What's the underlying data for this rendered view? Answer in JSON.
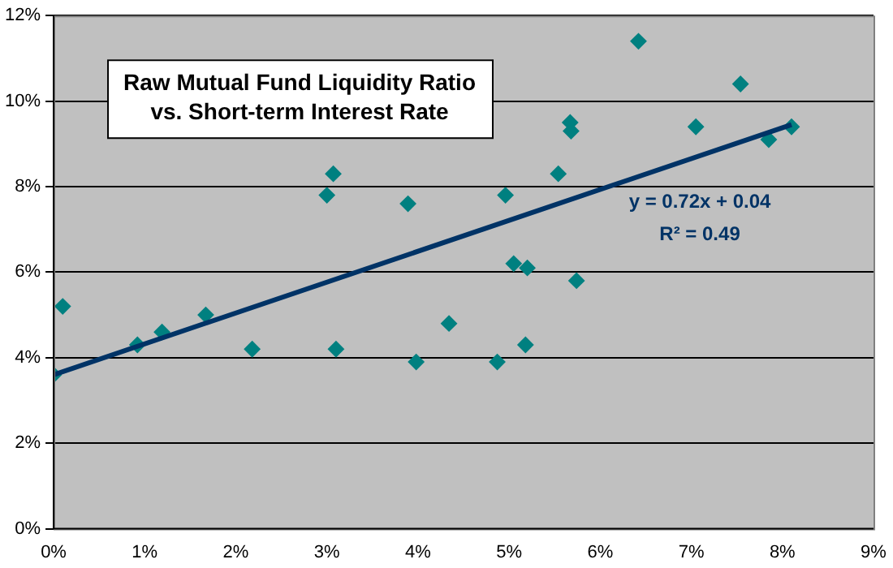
{
  "chart_data": {
    "type": "scatter",
    "title": "Raw Mutual Fund Liquidity Ratio\nvs. Short-term Interest Rate",
    "annotations": [
      "y = 0.72x + 0.04",
      "R² = 0.49"
    ],
    "xlim": [
      0,
      9
    ],
    "xticks": [
      {
        "value": 0,
        "label": "0%"
      },
      {
        "value": 1,
        "label": "1%"
      },
      {
        "value": 2,
        "label": "2%"
      },
      {
        "value": 3,
        "label": "3%"
      },
      {
        "value": 4,
        "label": "4%"
      },
      {
        "value": 5,
        "label": "5%"
      },
      {
        "value": 6,
        "label": "6%"
      },
      {
        "value": 7,
        "label": "7%"
      },
      {
        "value": 8,
        "label": "8%"
      },
      {
        "value": 9,
        "label": "9%"
      }
    ],
    "ylim": [
      0,
      12
    ],
    "yticks": [
      {
        "value": 0,
        "label": "0%"
      },
      {
        "value": 2,
        "label": "2%"
      },
      {
        "value": 4,
        "label": "4%"
      },
      {
        "value": 6,
        "label": "6%"
      },
      {
        "value": 8,
        "label": "8%"
      },
      {
        "value": 10,
        "label": "10%"
      },
      {
        "value": 12,
        "label": "12%"
      }
    ],
    "grid": "y",
    "legend": false,
    "marker": "diamond",
    "series": [
      {
        "type": "scatter",
        "color": "#008080",
        "x": [
          0.0,
          0.1,
          0.92,
          1.19,
          1.67,
          2.18,
          3.0,
          3.07,
          3.1,
          3.89,
          3.98,
          4.34,
          4.87,
          4.96,
          5.05,
          5.18,
          5.2,
          5.54,
          5.67,
          5.68,
          5.74,
          6.42,
          7.05,
          7.54,
          7.85,
          8.1
        ],
        "values": [
          3.6,
          5.2,
          4.3,
          4.6,
          5.0,
          4.2,
          7.8,
          8.3,
          4.2,
          7.6,
          3.9,
          4.8,
          3.9,
          7.8,
          6.2,
          4.3,
          6.1,
          8.3,
          9.5,
          9.3,
          5.8,
          11.4,
          9.4,
          10.4,
          9.1,
          9.4
        ]
      },
      {
        "type": "line",
        "color": "#003366",
        "x": [
          0,
          8.1
        ],
        "values": [
          3.6,
          9.45
        ],
        "marker": "none",
        "line_style": "solid"
      }
    ]
  }
}
